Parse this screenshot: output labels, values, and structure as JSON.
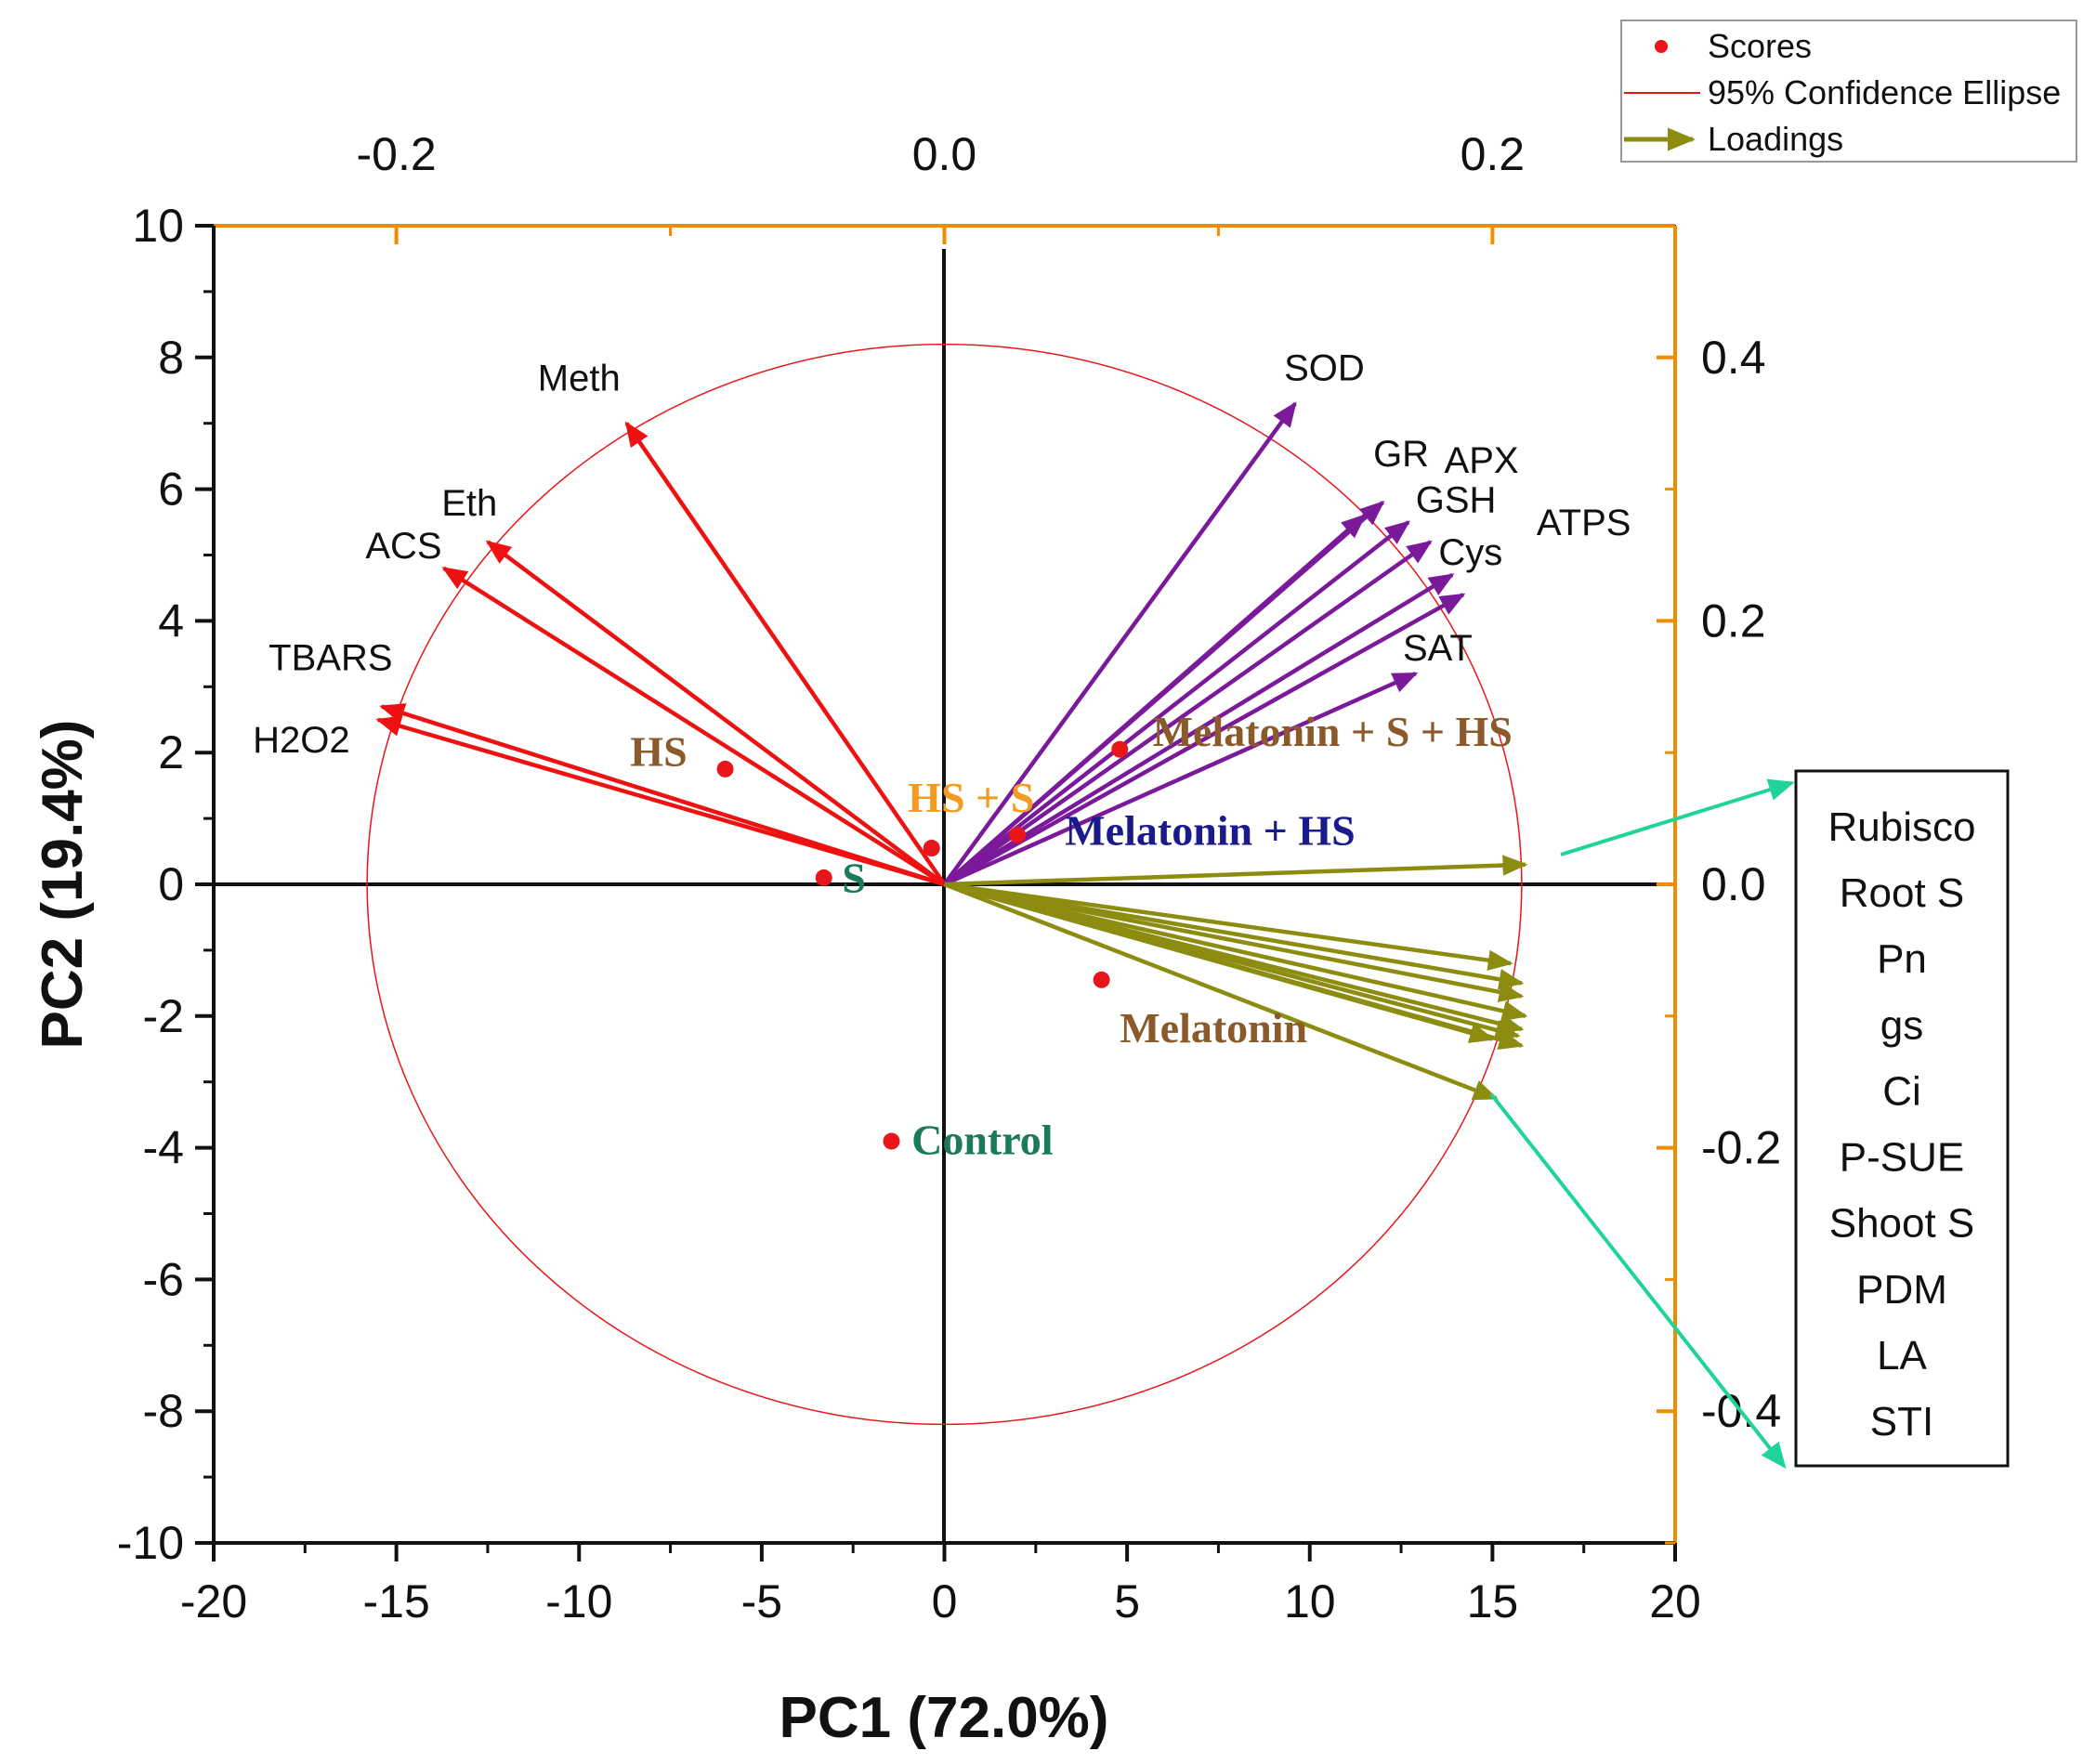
{
  "colors": {
    "score": "#e8161b",
    "ellipse": "#e8161b",
    "neg_loading": "#ee1111",
    "purple_loading": "#7a1a9a",
    "olive_loading": "#8b8c10",
    "callout": "#1fd39a",
    "top_right_axis": "#f08c00",
    "label_brown": "#8b5a2b",
    "label_orange": "#f39c1f",
    "label_navy": "#1a1a8c",
    "label_green": "#1a7a5a"
  },
  "legend": {
    "scores": "Scores",
    "ellipse": "95% Confidence Ellipse",
    "loadings": "Loadings"
  },
  "chart_data": {
    "type": "scatter",
    "subtype": "PCA biplot",
    "xlabel": "PC1 (72.0%)",
    "ylabel": "PC2 (19.4%)",
    "xlim": [
      -20,
      20
    ],
    "ylim": [
      -10,
      10
    ],
    "xticks": [
      "-20",
      "-15",
      "-10",
      "-5",
      "0",
      "5",
      "10",
      "15",
      "20"
    ],
    "yticks": [
      "-10",
      "-8",
      "-6",
      "-4",
      "-2",
      "0",
      "2",
      "4",
      "6",
      "8",
      "10"
    ],
    "top_axis": {
      "ticks": [
        -0.2,
        0.0,
        0.2
      ],
      "labels": [
        "-0.2",
        "0.0",
        "0.2"
      ],
      "scale": 75
    },
    "right_axis": {
      "ticks": [
        0.4,
        0.2,
        0.0,
        -0.2,
        -0.4
      ],
      "labels": [
        "0.4",
        "0.2",
        "0.0",
        "-0.2",
        "-0.4"
      ],
      "scale": 20
    },
    "ellipse": {
      "cx": 0,
      "cy": 0,
      "rx": 15.8,
      "ry": 8.2
    },
    "scores": [
      {
        "name": "HS",
        "x": -6.0,
        "y": 1.75,
        "label_color": "label_brown",
        "label_x": -8.6,
        "label_y": 1.8,
        "anchor": "start"
      },
      {
        "name": "HS + S",
        "x": -0.35,
        "y": 0.55,
        "label_color": "label_orange",
        "label_x": -1.0,
        "label_y": 1.1,
        "anchor": "start"
      },
      {
        "name": "S",
        "x": -3.3,
        "y": 0.1,
        "label_color": "label_green",
        "label_x": -2.8,
        "label_y": -0.12,
        "anchor": "start"
      },
      {
        "name": "Melatonin + S + HS",
        "x": 4.8,
        "y": 2.05,
        "label_color": "label_brown",
        "label_x": 5.7,
        "label_y": 2.1,
        "anchor": "start"
      },
      {
        "name": "Melatonin + HS",
        "x": 2.0,
        "y": 0.75,
        "label_color": "label_navy",
        "label_x": 3.3,
        "label_y": 0.6,
        "anchor": "start"
      },
      {
        "name": "Melatonin",
        "x": 4.3,
        "y": -1.45,
        "label_color": "label_brown",
        "label_x": 4.8,
        "label_y": -2.4,
        "anchor": "start"
      },
      {
        "name": "Control",
        "x": -1.45,
        "y": -3.9,
        "label_color": "label_green",
        "label_x": -0.9,
        "label_y": -4.1,
        "anchor": "start"
      }
    ],
    "loadings": [
      {
        "name": "Meth",
        "x": -8.7,
        "y": 7.0,
        "color": "neg_loading",
        "label_x": -10.0,
        "label_y": 7.5,
        "anchor": "middle"
      },
      {
        "name": "Eth",
        "x": -12.5,
        "y": 5.2,
        "color": "neg_loading",
        "label_x": -13.0,
        "label_y": 5.6,
        "anchor": "middle"
      },
      {
        "name": "ACS",
        "x": -13.7,
        "y": 4.8,
        "color": "neg_loading",
        "label_x": -14.8,
        "label_y": 4.95,
        "anchor": "middle"
      },
      {
        "name": "TBARS",
        "x": -15.4,
        "y": 2.7,
        "color": "neg_loading",
        "label_x": -16.8,
        "label_y": 3.25,
        "anchor": "middle"
      },
      {
        "name": "H2O2",
        "x": -15.5,
        "y": 2.5,
        "color": "neg_loading",
        "label_x": -17.6,
        "label_y": 2.0,
        "anchor": "middle"
      },
      {
        "name": "SOD",
        "x": 9.6,
        "y": 7.3,
        "color": "purple_loading",
        "label_x": 10.4,
        "label_y": 7.65,
        "anchor": "middle"
      },
      {
        "name": "GR",
        "x": 11.5,
        "y": 5.6,
        "color": "purple_loading",
        "label_x": 12.5,
        "label_y": 6.35,
        "anchor": "middle"
      },
      {
        "name": "APX",
        "x": 12.0,
        "y": 5.8,
        "color": "purple_loading",
        "label_x": 14.7,
        "label_y": 6.25,
        "anchor": "middle"
      },
      {
        "name": "GSH",
        "x": 12.7,
        "y": 5.5,
        "color": "purple_loading",
        "label_x": 14.0,
        "label_y": 5.65,
        "anchor": "middle"
      },
      {
        "name": "Cys",
        "x": 13.3,
        "y": 5.2,
        "color": "purple_loading",
        "label_x": 14.4,
        "label_y": 4.85,
        "anchor": "middle"
      },
      {
        "name": "ATPS",
        "x": 13.9,
        "y": 4.7,
        "color": "purple_loading",
        "label_x": 17.5,
        "label_y": 5.3,
        "anchor": "middle"
      },
      {
        "name": "",
        "x": 14.2,
        "y": 4.4,
        "color": "purple_loading"
      },
      {
        "name": "SAT",
        "x": 12.9,
        "y": 3.2,
        "color": "purple_loading",
        "label_x": 13.5,
        "label_y": 3.4,
        "anchor": "middle"
      },
      {
        "name": "Rubisco",
        "x": 15.9,
        "y": 0.3,
        "color": "olive_loading"
      },
      {
        "name": "Root S",
        "x": 15.5,
        "y": -1.2,
        "color": "olive_loading"
      },
      {
        "name": "Pn",
        "x": 15.8,
        "y": -1.5,
        "color": "olive_loading"
      },
      {
        "name": "gs",
        "x": 15.8,
        "y": -1.7,
        "color": "olive_loading"
      },
      {
        "name": "Ci",
        "x": 15.9,
        "y": -2.0,
        "color": "olive_loading"
      },
      {
        "name": "P-SUE",
        "x": 15.8,
        "y": -2.2,
        "color": "olive_loading"
      },
      {
        "name": "Shoot S",
        "x": 15.7,
        "y": -2.3,
        "color": "olive_loading"
      },
      {
        "name": "PDM",
        "x": 15.0,
        "y": -2.35,
        "color": "olive_loading"
      },
      {
        "name": "LA",
        "x": 15.8,
        "y": -2.45,
        "color": "olive_loading"
      },
      {
        "name": "STI",
        "x": 15.1,
        "y": -3.25,
        "color": "olive_loading"
      }
    ],
    "callout_group": [
      "Rubisco",
      "Root S",
      "Pn",
      "gs",
      "Ci",
      "P-SUE",
      "Shoot S",
      "PDM",
      "LA",
      "STI"
    ]
  }
}
